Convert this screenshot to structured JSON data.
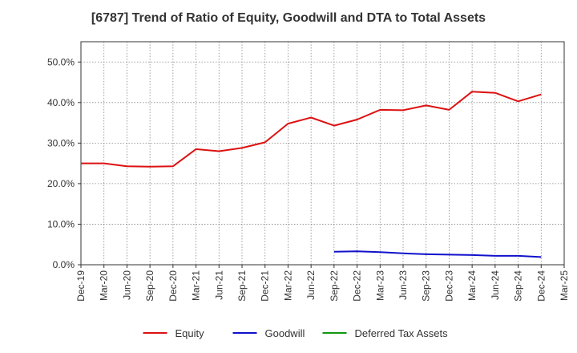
{
  "chart_data": {
    "type": "line",
    "title": "[6787]  Trend of Ratio of Equity, Goodwill and DTA to Total Assets",
    "xlabel": "",
    "ylabel": "",
    "ylim": [
      0,
      55
    ],
    "y_ticks": [
      "0.0%",
      "10.0%",
      "20.0%",
      "30.0%",
      "40.0%",
      "50.0%"
    ],
    "y_tick_values": [
      0,
      10,
      20,
      30,
      40,
      50
    ],
    "categories": [
      "Dec-19",
      "Mar-20",
      "Jun-20",
      "Sep-20",
      "Dec-20",
      "Mar-21",
      "Jun-21",
      "Sep-21",
      "Dec-21",
      "Mar-22",
      "Jun-22",
      "Sep-22",
      "Dec-22",
      "Mar-23",
      "Jun-23",
      "Sep-23",
      "Dec-23",
      "Mar-24",
      "Jun-24",
      "Sep-24",
      "Dec-24",
      "Mar-25"
    ],
    "grid": true,
    "legend_position": "bottom",
    "series": [
      {
        "name": "Equity",
        "color": "#dd1111",
        "values": [
          25.0,
          25.0,
          24.3,
          24.2,
          24.3,
          28.5,
          28.0,
          28.8,
          30.2,
          34.8,
          36.3,
          34.3,
          35.8,
          38.2,
          38.1,
          39.3,
          38.2,
          42.7,
          42.4,
          40.3,
          42.0,
          null
        ]
      },
      {
        "name": "Goodwill",
        "color": "#1111cc",
        "values": [
          null,
          null,
          null,
          null,
          null,
          null,
          null,
          null,
          null,
          null,
          null,
          3.2,
          3.3,
          3.1,
          2.8,
          2.6,
          2.5,
          2.4,
          2.2,
          2.2,
          1.9,
          null
        ]
      },
      {
        "name": "Deferred Tax Assets",
        "color": "#119911",
        "values": [
          null,
          null,
          null,
          null,
          null,
          null,
          null,
          null,
          null,
          null,
          null,
          null,
          null,
          null,
          null,
          null,
          null,
          null,
          null,
          null,
          null,
          null
        ]
      }
    ]
  }
}
